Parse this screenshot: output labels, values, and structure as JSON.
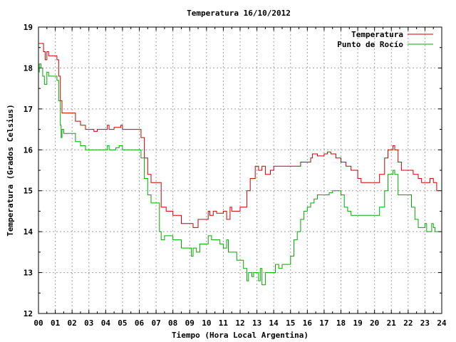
{
  "chart_data": {
    "type": "line",
    "title": "Temperatura 16/10/2012",
    "xlabel": "Tiempo (Hora Local Argentina)",
    "ylabel": "Temperatura (Grados Celsius)",
    "xlim": [
      0,
      24
    ],
    "ylim": [
      12,
      19
    ],
    "x_ticks": [
      "00",
      "01",
      "02",
      "03",
      "04",
      "05",
      "06",
      "07",
      "08",
      "09",
      "10",
      "11",
      "12",
      "13",
      "14",
      "15",
      "16",
      "17",
      "18",
      "19",
      "20",
      "21",
      "22",
      "23",
      "24"
    ],
    "y_ticks": [
      "12",
      "13",
      "14",
      "15",
      "16",
      "17",
      "18",
      "19"
    ],
    "grid": true,
    "legend_position": "top-right",
    "series": [
      {
        "name": "Temperatura",
        "color": "#cc0000",
        "points": [
          [
            0.0,
            18.6
          ],
          [
            0.2,
            18.6
          ],
          [
            0.3,
            18.4
          ],
          [
            0.4,
            18.2
          ],
          [
            0.5,
            18.4
          ],
          [
            0.6,
            18.3
          ],
          [
            1.0,
            18.3
          ],
          [
            1.1,
            18.2
          ],
          [
            1.2,
            17.8
          ],
          [
            1.3,
            17.2
          ],
          [
            1.4,
            16.9
          ],
          [
            2.0,
            16.9
          ],
          [
            2.2,
            16.7
          ],
          [
            2.5,
            16.6
          ],
          [
            2.8,
            16.5
          ],
          [
            3.2,
            16.5
          ],
          [
            3.3,
            16.45
          ],
          [
            3.5,
            16.5
          ],
          [
            4.0,
            16.5
          ],
          [
            4.1,
            16.6
          ],
          [
            4.2,
            16.5
          ],
          [
            4.5,
            16.55
          ],
          [
            4.9,
            16.6
          ],
          [
            5.0,
            16.5
          ],
          [
            6.0,
            16.5
          ],
          [
            6.1,
            16.3
          ],
          [
            6.3,
            15.8
          ],
          [
            6.5,
            15.4
          ],
          [
            6.7,
            15.2
          ],
          [
            7.0,
            15.2
          ],
          [
            7.3,
            14.6
          ],
          [
            7.6,
            14.5
          ],
          [
            8.0,
            14.4
          ],
          [
            8.5,
            14.2
          ],
          [
            9.0,
            14.2
          ],
          [
            9.2,
            14.1
          ],
          [
            9.5,
            14.3
          ],
          [
            10.0,
            14.3
          ],
          [
            10.1,
            14.5
          ],
          [
            10.2,
            14.4
          ],
          [
            10.4,
            14.5
          ],
          [
            10.6,
            14.45
          ],
          [
            11.0,
            14.5
          ],
          [
            11.2,
            14.3
          ],
          [
            11.4,
            14.6
          ],
          [
            11.5,
            14.5
          ],
          [
            12.0,
            14.6
          ],
          [
            12.2,
            14.6
          ],
          [
            12.4,
            15.0
          ],
          [
            12.6,
            15.3
          ],
          [
            12.9,
            15.6
          ],
          [
            13.1,
            15.5
          ],
          [
            13.3,
            15.6
          ],
          [
            13.5,
            15.4
          ],
          [
            13.8,
            15.5
          ],
          [
            14.0,
            15.6
          ],
          [
            14.5,
            15.6
          ],
          [
            15.0,
            15.6
          ],
          [
            15.5,
            15.6
          ],
          [
            15.6,
            15.7
          ],
          [
            16.0,
            15.7
          ],
          [
            16.2,
            15.8
          ],
          [
            16.3,
            15.9
          ],
          [
            16.6,
            15.85
          ],
          [
            17.0,
            15.9
          ],
          [
            17.2,
            15.95
          ],
          [
            17.4,
            15.9
          ],
          [
            17.7,
            15.8
          ],
          [
            18.0,
            15.7
          ],
          [
            18.3,
            15.6
          ],
          [
            18.6,
            15.5
          ],
          [
            19.0,
            15.3
          ],
          [
            19.2,
            15.2
          ],
          [
            19.6,
            15.2
          ],
          [
            20.0,
            15.2
          ],
          [
            20.3,
            15.4
          ],
          [
            20.6,
            15.8
          ],
          [
            20.8,
            16.0
          ],
          [
            21.0,
            16.0
          ],
          [
            21.1,
            16.1
          ],
          [
            21.2,
            16.0
          ],
          [
            21.4,
            15.7
          ],
          [
            21.6,
            15.5
          ],
          [
            22.0,
            15.5
          ],
          [
            22.3,
            15.4
          ],
          [
            22.6,
            15.3
          ],
          [
            22.8,
            15.2
          ],
          [
            23.0,
            15.2
          ],
          [
            23.3,
            15.3
          ],
          [
            23.5,
            15.2
          ],
          [
            23.7,
            15.0
          ],
          [
            23.8,
            15.0
          ]
        ]
      },
      {
        "name": "Punto de Rocío",
        "color": "#00aa00",
        "points": [
          [
            0.0,
            17.9
          ],
          [
            0.05,
            18.1
          ],
          [
            0.15,
            18.0
          ],
          [
            0.25,
            17.8
          ],
          [
            0.35,
            17.6
          ],
          [
            0.5,
            17.9
          ],
          [
            0.6,
            17.8
          ],
          [
            1.0,
            17.8
          ],
          [
            1.1,
            17.7
          ],
          [
            1.2,
            17.2
          ],
          [
            1.3,
            16.6
          ],
          [
            1.35,
            16.3
          ],
          [
            1.4,
            16.5
          ],
          [
            1.5,
            16.4
          ],
          [
            2.0,
            16.4
          ],
          [
            2.2,
            16.2
          ],
          [
            2.5,
            16.1
          ],
          [
            2.8,
            16.0
          ],
          [
            3.0,
            16.0
          ],
          [
            3.5,
            16.0
          ],
          [
            4.0,
            16.0
          ],
          [
            4.1,
            16.1
          ],
          [
            4.2,
            16.0
          ],
          [
            4.6,
            16.05
          ],
          [
            4.8,
            16.1
          ],
          [
            5.0,
            16.0
          ],
          [
            6.0,
            16.0
          ],
          [
            6.1,
            15.8
          ],
          [
            6.3,
            15.3
          ],
          [
            6.5,
            14.9
          ],
          [
            6.7,
            14.7
          ],
          [
            7.0,
            14.7
          ],
          [
            7.2,
            14.0
          ],
          [
            7.3,
            13.8
          ],
          [
            7.5,
            13.9
          ],
          [
            8.0,
            13.8
          ],
          [
            8.5,
            13.6
          ],
          [
            9.0,
            13.6
          ],
          [
            9.1,
            13.4
          ],
          [
            9.2,
            13.6
          ],
          [
            9.4,
            13.5
          ],
          [
            9.6,
            13.7
          ],
          [
            10.0,
            13.7
          ],
          [
            10.1,
            13.9
          ],
          [
            10.3,
            13.8
          ],
          [
            10.6,
            13.8
          ],
          [
            10.8,
            13.7
          ],
          [
            11.0,
            13.6
          ],
          [
            11.2,
            13.8
          ],
          [
            11.3,
            13.5
          ],
          [
            11.5,
            13.5
          ],
          [
            11.8,
            13.3
          ],
          [
            12.0,
            13.3
          ],
          [
            12.2,
            13.1
          ],
          [
            12.4,
            12.8
          ],
          [
            12.5,
            13.0
          ],
          [
            12.7,
            12.9
          ],
          [
            12.8,
            13.0
          ],
          [
            13.0,
            13.0
          ],
          [
            13.1,
            12.8
          ],
          [
            13.2,
            13.1
          ],
          [
            13.3,
            12.7
          ],
          [
            13.5,
            13.0
          ],
          [
            14.0,
            13.0
          ],
          [
            14.1,
            13.2
          ],
          [
            14.3,
            13.1
          ],
          [
            14.5,
            13.2
          ],
          [
            14.9,
            13.2
          ],
          [
            15.0,
            13.4
          ],
          [
            15.2,
            13.8
          ],
          [
            15.4,
            14.0
          ],
          [
            15.6,
            14.3
          ],
          [
            15.8,
            14.5
          ],
          [
            16.0,
            14.6
          ],
          [
            16.2,
            14.7
          ],
          [
            16.4,
            14.8
          ],
          [
            16.6,
            14.9
          ],
          [
            17.0,
            14.9
          ],
          [
            17.3,
            14.95
          ],
          [
            17.5,
            15.0
          ],
          [
            17.8,
            15.0
          ],
          [
            18.0,
            14.9
          ],
          [
            18.2,
            14.6
          ],
          [
            18.4,
            14.5
          ],
          [
            18.6,
            14.4
          ],
          [
            19.0,
            14.4
          ],
          [
            19.5,
            14.4
          ],
          [
            20.0,
            14.4
          ],
          [
            20.3,
            14.6
          ],
          [
            20.6,
            15.0
          ],
          [
            20.8,
            15.4
          ],
          [
            21.0,
            15.4
          ],
          [
            21.1,
            15.5
          ],
          [
            21.2,
            15.4
          ],
          [
            21.4,
            14.9
          ],
          [
            21.6,
            14.9
          ],
          [
            22.0,
            14.9
          ],
          [
            22.2,
            14.6
          ],
          [
            22.4,
            14.3
          ],
          [
            22.6,
            14.1
          ],
          [
            22.8,
            14.1
          ],
          [
            23.0,
            14.2
          ],
          [
            23.1,
            14.0
          ],
          [
            23.3,
            14.0
          ],
          [
            23.4,
            14.2
          ],
          [
            23.5,
            14.1
          ],
          [
            23.6,
            14.0
          ],
          [
            23.8,
            14.0
          ]
        ]
      }
    ]
  }
}
